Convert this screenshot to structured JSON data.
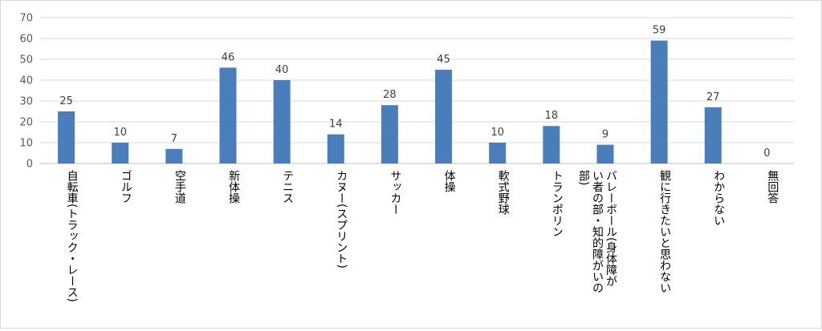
{
  "chart_data": {
    "type": "bar",
    "categories": [
      "自転車(トラック・レース)",
      "ゴルフ",
      "空手道",
      "新体操",
      "テニス",
      "カヌー(スプリント)",
      "サッカー",
      "体操",
      "軟式野球",
      "トランポリン",
      "バレーボール(身体障がい者の部・知的障がいの部)",
      "観に行きたいと思わない",
      "わからない",
      "無回答"
    ],
    "category_lines": [
      [
        "自転車(トラック・レース)"
      ],
      [
        "ゴルフ"
      ],
      [
        "空手道"
      ],
      [
        "新体操"
      ],
      [
        "テニス"
      ],
      [
        "カヌー(スプリント)"
      ],
      [
        "サッカー"
      ],
      [
        "体操"
      ],
      [
        "軟式野球"
      ],
      [
        "トランポリン"
      ],
      [
        "バレーボール(身体障が",
        "い者の部・知的障がいの",
        "部)"
      ],
      [
        "観に行きたいと思わない"
      ],
      [
        "わからない"
      ],
      [
        "無回答"
      ]
    ],
    "values": [
      25,
      10,
      7,
      46,
      40,
      14,
      28,
      45,
      10,
      18,
      9,
      59,
      27,
      0
    ],
    "ylim": [
      0,
      70
    ],
    "yticks": [
      0,
      10,
      20,
      30,
      40,
      50,
      60,
      70
    ],
    "grid": true,
    "legend": "none",
    "title": "",
    "xlabel": "",
    "ylabel": "",
    "colors": {
      "bar": "#4a7ebb",
      "grid": "#d9d9d9"
    }
  }
}
